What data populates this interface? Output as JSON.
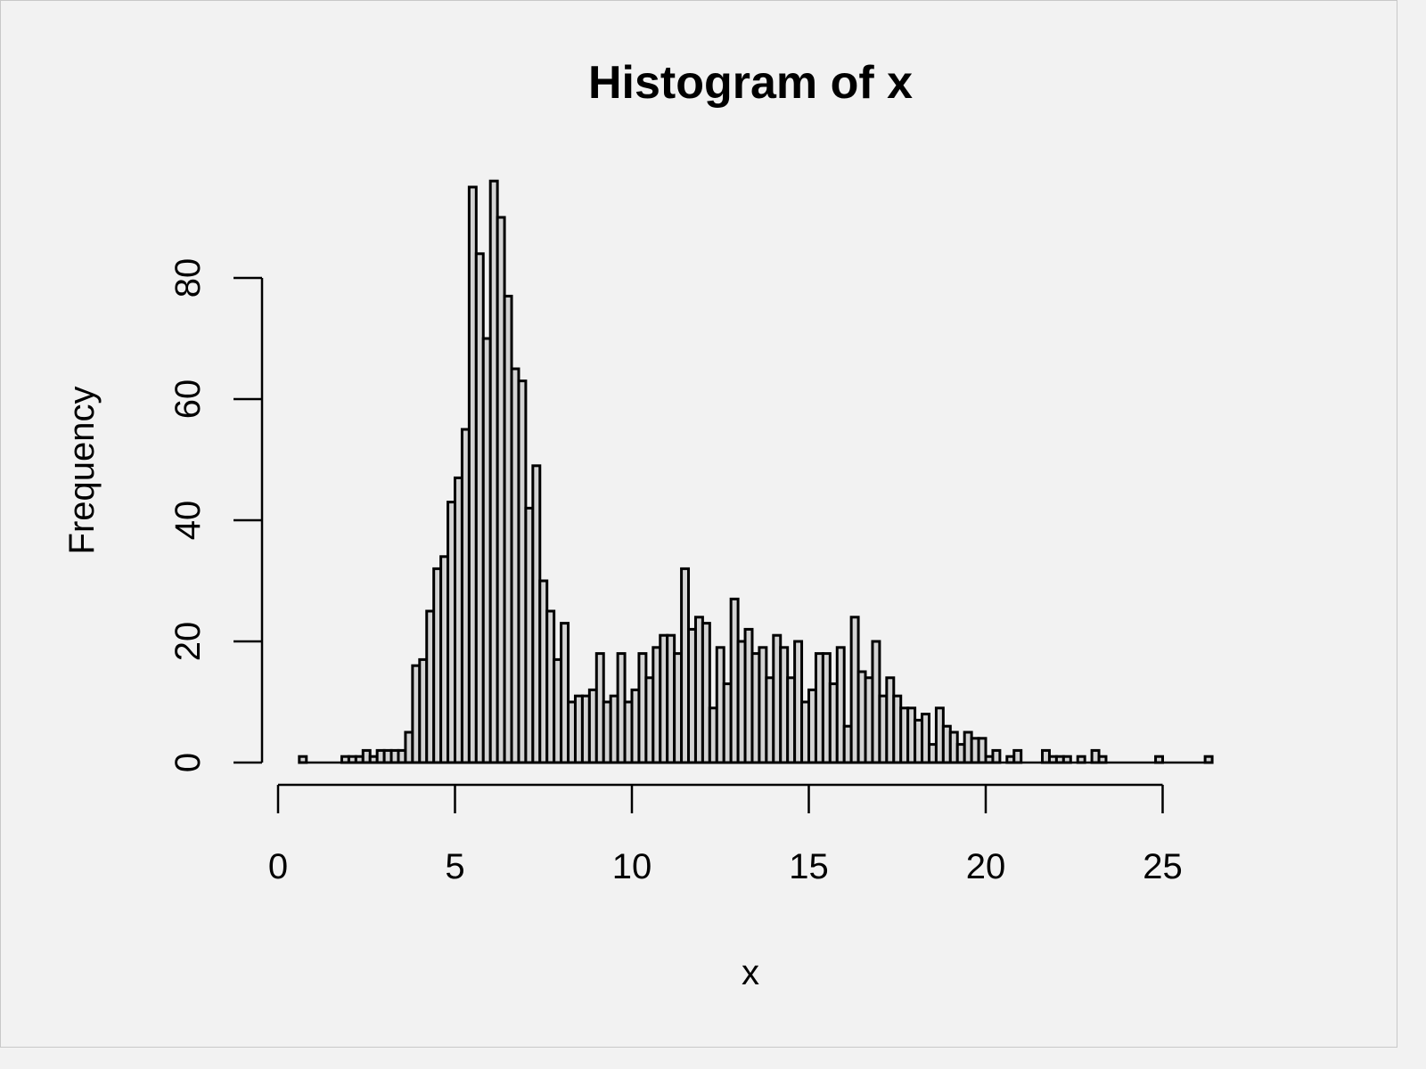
{
  "chart_data": {
    "type": "bar",
    "title": "Histogram of x",
    "xlabel": "x",
    "ylabel": "Frequency",
    "xlim": [
      0,
      26.25
    ],
    "ylim": [
      0,
      96
    ],
    "x_ticks": [
      0,
      5,
      10,
      15,
      20,
      25
    ],
    "x_tick_labels": [
      "0",
      "5",
      "10",
      "15",
      "20",
      "25"
    ],
    "y_ticks": [
      0,
      20,
      40,
      60,
      80
    ],
    "y_tick_labels": [
      "0",
      "20",
      "40",
      "60",
      "80"
    ],
    "grid": false,
    "legend": "none",
    "bar_fill": "#d3d3d3",
    "bar_stroke": "#000000",
    "background": "#f2f2f2",
    "bin_width": 0.2,
    "bin_start": 0.6,
    "values": [
      1,
      0,
      0,
      0,
      0,
      0,
      1,
      1,
      1,
      2,
      1,
      2,
      2,
      2,
      2,
      5,
      16,
      17,
      25,
      32,
      34,
      43,
      47,
      55,
      95,
      84,
      70,
      96,
      90,
      77,
      65,
      63,
      42,
      49,
      30,
      25,
      17,
      23,
      10,
      11,
      11,
      12,
      18,
      10,
      11,
      18,
      10,
      12,
      18,
      14,
      19,
      21,
      21,
      18,
      32,
      22,
      24,
      23,
      9,
      19,
      13,
      27,
      20,
      22,
      18,
      19,
      14,
      21,
      19,
      14,
      20,
      10,
      12,
      18,
      18,
      13,
      19,
      6,
      24,
      15,
      14,
      20,
      11,
      14,
      11,
      9,
      9,
      7,
      8,
      3,
      9,
      6,
      5,
      3,
      5,
      4,
      4,
      1,
      2,
      0,
      1,
      2,
      0,
      0,
      0,
      2,
      1,
      1,
      1,
      0,
      1,
      0,
      2,
      1,
      0,
      0,
      0,
      0,
      0,
      0,
      0,
      1,
      0,
      0,
      0,
      0,
      0,
      0,
      1
    ]
  }
}
